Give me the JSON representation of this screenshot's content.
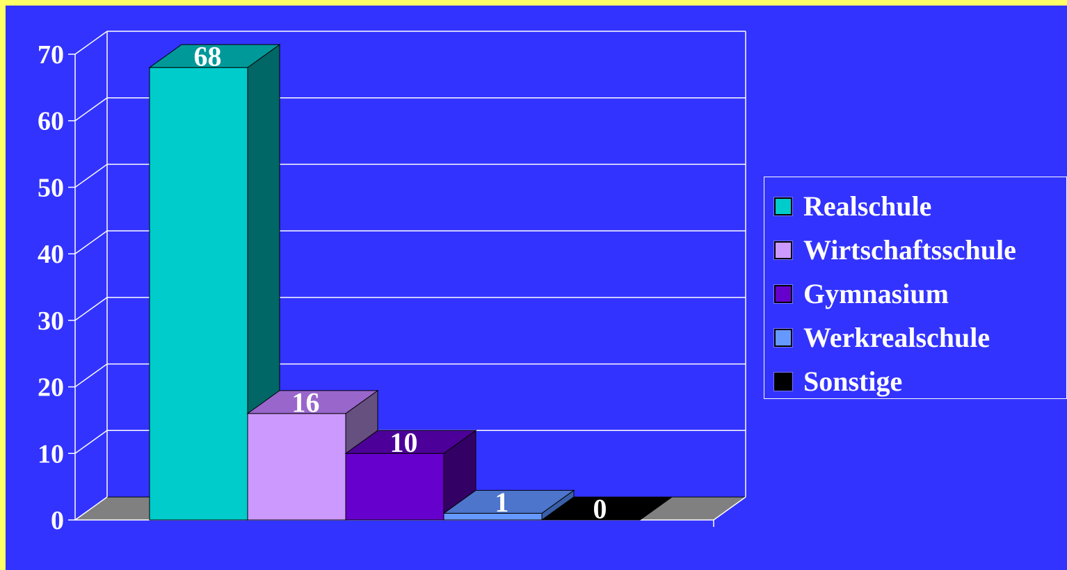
{
  "chart_data": {
    "type": "bar",
    "categories": [
      "Realschule",
      "Wirtschaftsschule",
      "Gymnasium",
      "Werkrealschule",
      "Sonstige"
    ],
    "values": [
      68,
      16,
      10,
      1,
      0
    ],
    "data_labels": [
      "68",
      "16",
      "10",
      "1",
      "0"
    ],
    "ylim": [
      0,
      70
    ],
    "yticks": [
      "0",
      "10",
      "20",
      "30",
      "40",
      "50",
      "60",
      "70"
    ],
    "grid": true,
    "legend_position": "right",
    "three_d": true,
    "colors": {
      "background": "#3333FF",
      "outer_border": "#FFFF66",
      "floor": "#808080",
      "grid": "#FFFFFF",
      "series": [
        {
          "front": "#00CCCC",
          "side": "#006666",
          "top": "#009999"
        },
        {
          "front": "#CC99FF",
          "side": "#665080",
          "top": "#9966CC"
        },
        {
          "front": "#6600CC",
          "side": "#330066",
          "top": "#4C0099"
        },
        {
          "front": "#6699FF",
          "side": "#3A5FA8",
          "top": "#4D75CC"
        },
        {
          "front": "#000000",
          "side": "#000000",
          "top": "#000000"
        }
      ]
    }
  }
}
